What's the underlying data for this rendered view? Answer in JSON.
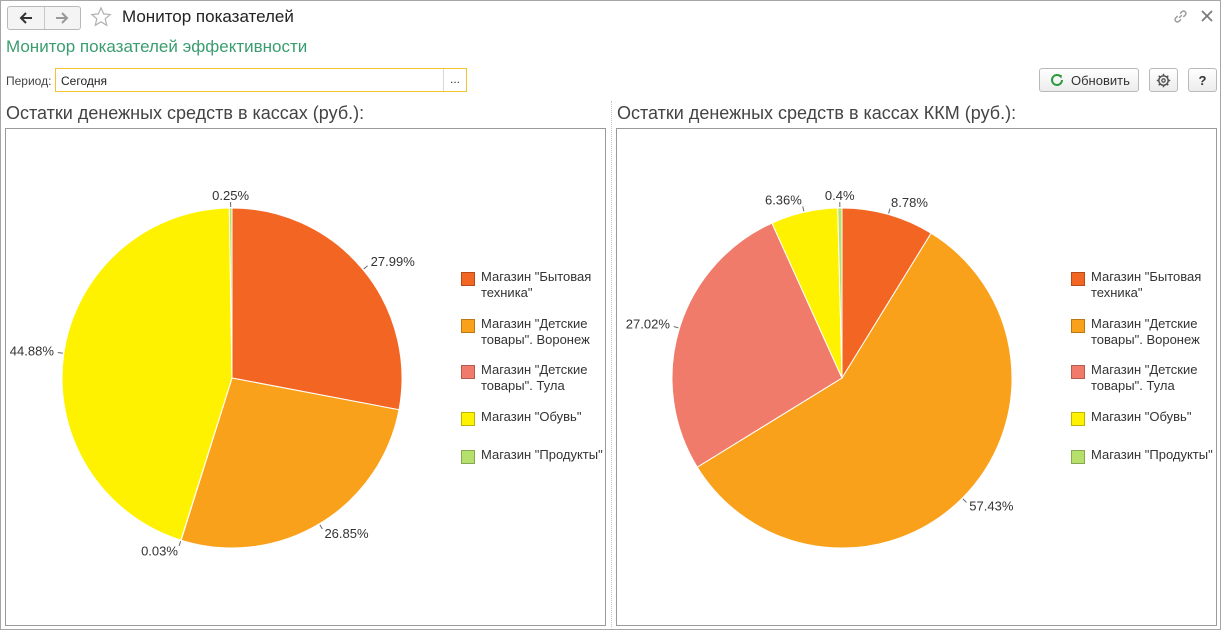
{
  "window": {
    "title": "Монитор показателей"
  },
  "form": {
    "title": "Монитор показателей эффективности",
    "period_label": "Период:",
    "period_value": "Сегодня",
    "period_select_label": "...",
    "refresh_label": "Обновить",
    "help_label": "?"
  },
  "legend": [
    {
      "label": "Магазин \"Бытовая техника\"",
      "color": "#f26522"
    },
    {
      "label": "Магазин \"Детские товары\". Воронеж",
      "color": "#f9a11b"
    },
    {
      "label": "Магазин \"Детские товары\". Тула",
      "color": "#f07b6a"
    },
    {
      "label": "Магазин \"Обувь\"",
      "color": "#fff200"
    },
    {
      "label": "Магазин \"Продукты\"",
      "color": "#b5e06b"
    }
  ],
  "chart_data": [
    {
      "type": "pie",
      "title": "Остатки денежных средств в кассах (руб.):",
      "series": [
        {
          "name": "Магазин \"Бытовая техника\"",
          "value": 27.99,
          "label": "27.99%"
        },
        {
          "name": "Магазин \"Детские товары\". Воронеж",
          "value": 26.85,
          "label": "26.85%"
        },
        {
          "name": "Магазин \"Детские товары\". Тула",
          "value": 0.03,
          "label": "0.03%"
        },
        {
          "name": "Магазин \"Обувь\"",
          "value": 44.88,
          "label": "44.88%"
        },
        {
          "name": "Магазин \"Продукты\"",
          "value": 0.25,
          "label": "0.25%"
        }
      ]
    },
    {
      "type": "pie",
      "title": "Остатки денежных средств в кассах ККМ (руб.):",
      "series": [
        {
          "name": "Магазин \"Бытовая техника\"",
          "value": 8.78,
          "label": "8.78%"
        },
        {
          "name": "Магазин \"Детские товары\". Воронеж",
          "value": 57.43,
          "label": "57.43%"
        },
        {
          "name": "Магазин \"Детские товары\". Тула",
          "value": 27.02,
          "label": "27.02%"
        },
        {
          "name": "Магазин \"Обувь\"",
          "value": 6.36,
          "label": "6.36%"
        },
        {
          "name": "Магазин \"Продукты\"",
          "value": 0.4,
          "label": "0.4%"
        }
      ]
    }
  ]
}
